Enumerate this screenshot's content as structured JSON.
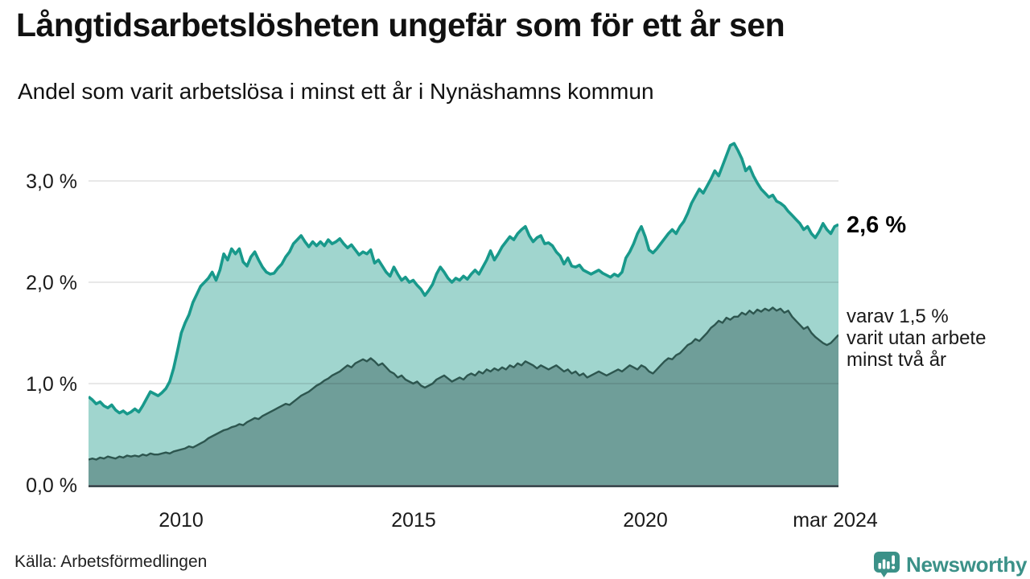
{
  "header": {
    "title": "Långtidsarbetslösheten ungefär som för ett år sen",
    "subtitle": "Andel som varit arbetslösa i minst ett år i Nynäshamns kommun"
  },
  "axis": {
    "y_labels": [
      "3,0 %",
      "2,0 %",
      "1,0 %",
      "0,0 %"
    ],
    "x_labels": [
      "2010",
      "2015",
      "2020",
      "mar 2024"
    ]
  },
  "annotations": {
    "latest_total": "2,6 %",
    "secondary": {
      "lines": [
        "varav 1,5 %",
        "varit utan arbete",
        "minst två år"
      ]
    }
  },
  "footer": {
    "source": "Källa: Arbetsförmedlingen",
    "brand": "Newsworthy"
  },
  "colors": {
    "line_total": "#18998b",
    "fill_total": "#a0d5ce",
    "line_two_year": "#2d564f",
    "fill_two_year": "#6f9e99",
    "gridline": "rgba(0,0,0,0.09)",
    "baseline": "#24333a",
    "brand_teal": "#3b9188"
  },
  "chart_data": {
    "type": "area",
    "title": "Långtidsarbetslösheten ungefär som för ett år sen",
    "subtitle": "Andel som varit arbetslösa i minst ett år i Nynäshamns kommun",
    "unit": "%",
    "frequency": "monthly",
    "x_start": "2008-01",
    "x_end": "2024-03",
    "ylim": [
      0,
      3.475
    ],
    "grid_values": [
      1,
      2,
      3
    ],
    "x_tick_month_indices": [
      24,
      84,
      144,
      194
    ],
    "x_tick_labels": [
      "2010",
      "2015",
      "2020",
      "mar 2024"
    ],
    "legend_position": "right-annotations",
    "latest_values": {
      "total": 2.6,
      "two_year": 1.5
    },
    "series": [
      {
        "name": "Andel arbetslösa minst ett år",
        "color": "#18998b",
        "fill": "#a0d5ce",
        "values": [
          0.87,
          0.84,
          0.8,
          0.82,
          0.78,
          0.76,
          0.79,
          0.74,
          0.71,
          0.73,
          0.7,
          0.72,
          0.75,
          0.72,
          0.78,
          0.85,
          0.92,
          0.9,
          0.88,
          0.91,
          0.95,
          1.02,
          1.15,
          1.32,
          1.5,
          1.6,
          1.68,
          1.8,
          1.88,
          1.96,
          2.0,
          2.04,
          2.1,
          2.02,
          2.12,
          2.28,
          2.22,
          2.33,
          2.28,
          2.33,
          2.2,
          2.16,
          2.25,
          2.3,
          2.22,
          2.15,
          2.1,
          2.08,
          2.09,
          2.14,
          2.18,
          2.25,
          2.3,
          2.38,
          2.42,
          2.46,
          2.4,
          2.35,
          2.4,
          2.36,
          2.4,
          2.36,
          2.42,
          2.38,
          2.4,
          2.43,
          2.38,
          2.34,
          2.37,
          2.32,
          2.27,
          2.3,
          2.28,
          2.32,
          2.19,
          2.22,
          2.16,
          2.1,
          2.06,
          2.15,
          2.08,
          2.02,
          2.05,
          2.0,
          2.02,
          1.97,
          1.93,
          1.87,
          1.92,
          1.98,
          2.08,
          2.15,
          2.1,
          2.04,
          2.0,
          2.04,
          2.02,
          2.06,
          2.03,
          2.08,
          2.12,
          2.08,
          2.15,
          2.22,
          2.31,
          2.22,
          2.28,
          2.35,
          2.4,
          2.45,
          2.42,
          2.48,
          2.52,
          2.55,
          2.46,
          2.4,
          2.44,
          2.46,
          2.38,
          2.39,
          2.36,
          2.3,
          2.26,
          2.18,
          2.24,
          2.16,
          2.15,
          2.17,
          2.12,
          2.1,
          2.08,
          2.1,
          2.12,
          2.09,
          2.07,
          2.05,
          2.08,
          2.06,
          2.1,
          2.24,
          2.3,
          2.38,
          2.48,
          2.55,
          2.45,
          2.32,
          2.29,
          2.33,
          2.38,
          2.43,
          2.48,
          2.52,
          2.48,
          2.55,
          2.6,
          2.68,
          2.78,
          2.85,
          2.92,
          2.88,
          2.95,
          3.02,
          3.1,
          3.05,
          3.15,
          3.25,
          3.35,
          3.37,
          3.3,
          3.22,
          3.1,
          3.14,
          3.05,
          2.98,
          2.92,
          2.88,
          2.84,
          2.86,
          2.8,
          2.78,
          2.75,
          2.7,
          2.66,
          2.62,
          2.58,
          2.52,
          2.55,
          2.48,
          2.44,
          2.5,
          2.58,
          2.52,
          2.48,
          2.55,
          2.57
        ]
      },
      {
        "name": "varav arbetslösa minst två år",
        "color": "#2d564f",
        "fill": "#6f9e99",
        "values": [
          0.25,
          0.26,
          0.25,
          0.27,
          0.26,
          0.28,
          0.27,
          0.26,
          0.28,
          0.27,
          0.29,
          0.28,
          0.29,
          0.28,
          0.3,
          0.29,
          0.31,
          0.3,
          0.3,
          0.31,
          0.32,
          0.31,
          0.33,
          0.34,
          0.35,
          0.36,
          0.38,
          0.37,
          0.39,
          0.41,
          0.43,
          0.46,
          0.48,
          0.5,
          0.52,
          0.54,
          0.55,
          0.57,
          0.58,
          0.6,
          0.59,
          0.62,
          0.64,
          0.66,
          0.65,
          0.68,
          0.7,
          0.72,
          0.74,
          0.76,
          0.78,
          0.8,
          0.79,
          0.82,
          0.85,
          0.88,
          0.9,
          0.92,
          0.95,
          0.98,
          1.0,
          1.03,
          1.05,
          1.08,
          1.1,
          1.12,
          1.15,
          1.18,
          1.16,
          1.2,
          1.22,
          1.24,
          1.22,
          1.25,
          1.22,
          1.18,
          1.2,
          1.16,
          1.12,
          1.1,
          1.06,
          1.08,
          1.04,
          1.02,
          1.0,
          1.02,
          0.98,
          0.96,
          0.98,
          1.0,
          1.04,
          1.06,
          1.08,
          1.05,
          1.02,
          1.04,
          1.06,
          1.04,
          1.08,
          1.1,
          1.08,
          1.12,
          1.1,
          1.14,
          1.12,
          1.15,
          1.13,
          1.16,
          1.14,
          1.18,
          1.16,
          1.2,
          1.18,
          1.22,
          1.2,
          1.18,
          1.15,
          1.18,
          1.16,
          1.14,
          1.16,
          1.18,
          1.15,
          1.12,
          1.14,
          1.1,
          1.12,
          1.08,
          1.1,
          1.06,
          1.08,
          1.1,
          1.12,
          1.1,
          1.08,
          1.1,
          1.12,
          1.14,
          1.12,
          1.15,
          1.18,
          1.16,
          1.14,
          1.18,
          1.16,
          1.12,
          1.1,
          1.14,
          1.18,
          1.22,
          1.25,
          1.24,
          1.28,
          1.3,
          1.34,
          1.38,
          1.4,
          1.44,
          1.42,
          1.46,
          1.5,
          1.55,
          1.58,
          1.62,
          1.6,
          1.65,
          1.63,
          1.66,
          1.66,
          1.7,
          1.68,
          1.72,
          1.69,
          1.73,
          1.71,
          1.74,
          1.72,
          1.75,
          1.72,
          1.74,
          1.7,
          1.72,
          1.66,
          1.62,
          1.58,
          1.54,
          1.56,
          1.5,
          1.46,
          1.43,
          1.4,
          1.38,
          1.4,
          1.44,
          1.48
        ]
      }
    ]
  }
}
